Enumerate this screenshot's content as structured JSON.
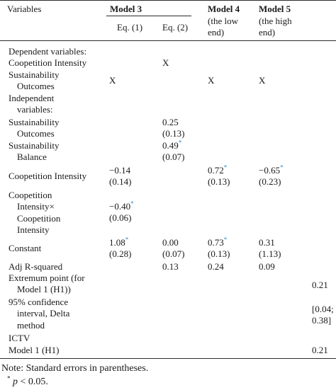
{
  "header": {
    "variables": "Variables",
    "model3": "Model 3",
    "eq1": "Eq. (1)",
    "eq2": "Eq. (2)",
    "model4": "Model 4",
    "model4_sub1": "(the low",
    "model4_sub2": "end)",
    "model5": "Model 5",
    "model5_sub1": "(the high",
    "model5_sub2": "end)"
  },
  "rows": {
    "dep_header": "Dependent variables:",
    "coop_intensity_dep": "Coopetition Intensity",
    "coop_intensity_dep_eq2": "X",
    "sust_outcomes_dep_1": "Sustainability",
    "sust_outcomes_dep_2": "Outcomes",
    "sust_outcomes_dep_eq1": "X",
    "sust_outcomes_dep_m4": "X",
    "sust_outcomes_dep_m5": "X",
    "indep_header_1": "Independent",
    "indep_header_2": "variables:",
    "sust_outcomes_1": "Sustainability",
    "sust_outcomes_2": "Outcomes",
    "sust_outcomes_eq2_coef": "0.25",
    "sust_outcomes_eq2_se": "(0.13)",
    "sust_balance_1": "Sustainability",
    "sust_balance_2": "Balance",
    "sust_balance_eq2_coef": "0.49",
    "sust_balance_eq2_se": "(0.07)",
    "coop_intensity": "Coopetition Intensity",
    "coop_intensity_eq1_coef": "−0.14",
    "coop_intensity_eq1_se": "(0.14)",
    "coop_intensity_m4_coef": "0.72",
    "coop_intensity_m4_se": "(0.13)",
    "coop_intensity_m5_coef": "−0.65",
    "coop_intensity_m5_se": "(0.23)",
    "interaction_1": "Coopetition",
    "interaction_2": "Intensity×",
    "interaction_3": "Coopetition",
    "interaction_4": "Intensity",
    "interaction_eq1_coef": "−0.40",
    "interaction_eq1_se": "(0.06)",
    "constant": "Constant",
    "constant_eq1_coef": "1.08",
    "constant_eq1_se": "(0.28)",
    "constant_eq2_coef": "0.00",
    "constant_eq2_se": "(0.07)",
    "constant_m4_coef": "0.73",
    "constant_m4_se": "(0.13)",
    "constant_m5_coef": "0.31",
    "constant_m5_se": "(1.13)",
    "adj_r2": "Adj R-squared",
    "adj_r2_eq2": "0.13",
    "adj_r2_m4": "0.24",
    "adj_r2_m5": "0.09",
    "extremum_1": "Extremum point (for",
    "extremum_2": "Model 1 (H1))",
    "extremum_val": "0.21",
    "ci_1": "95% confidence",
    "ci_2": "interval, Delta",
    "ci_3": "method",
    "ci_val_1": "[0.04;",
    "ci_val_2": "0.38]",
    "ictv_1": "ICTV",
    "ictv_2": "Model 1 (H1)",
    "ictv_val": "0.21"
  },
  "asterisk": "*",
  "note": {
    "line1": "Note: Standard errors in parentheses.",
    "p": "p",
    "line2_rest": " < 0.05."
  }
}
